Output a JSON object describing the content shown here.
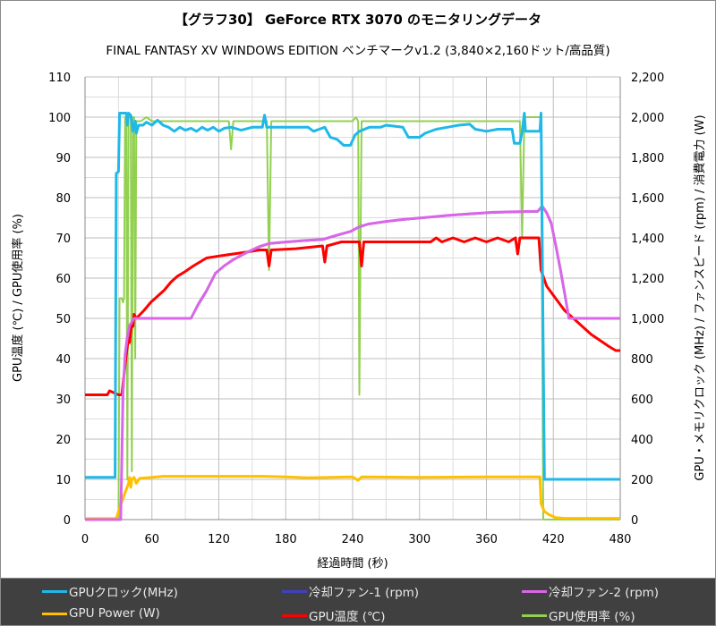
{
  "chart_data": {
    "type": "line",
    "title": "【グラフ30】 GeForce RTX 3070 のモニタリングデータ",
    "subtitle": "FINAL FANTASY XV WINDOWS EDITION ベンチマークv1.2 (3,840×2,160ドット/高品質)",
    "xlabel": "経過時間 (秒)",
    "ylabel_left": "GPU温度 (℃) / GPU使用率 (%)",
    "ylabel_right": "GPU・メモリクロック (MHz) / ファンスピード (rpm) / 消費電力 (W)",
    "xlim": [
      0,
      480
    ],
    "ylim_left": [
      0,
      110
    ],
    "ylim_right": [
      0,
      2200
    ],
    "x_ticks": [
      "0",
      "60",
      "120",
      "180",
      "240",
      "300",
      "360",
      "420",
      "480"
    ],
    "y_ticks_left": [
      "0",
      "10",
      "20",
      "30",
      "40",
      "50",
      "60",
      "70",
      "80",
      "90",
      "100",
      "110"
    ],
    "y_ticks_right": [
      "0",
      "200",
      "400",
      "600",
      "800",
      "1,000",
      "1,200",
      "1,400",
      "1,600",
      "1,800",
      "2,000",
      "2,200"
    ],
    "grid": true,
    "legend_position": "bottom",
    "series": [
      {
        "name": "GPU使用率 (%)",
        "axis": "left",
        "color": "#92d050",
        "points": [
          [
            0,
            0
          ],
          [
            30,
            0
          ],
          [
            31,
            55
          ],
          [
            33,
            55
          ],
          [
            34,
            54
          ],
          [
            35,
            55
          ],
          [
            36,
            100
          ],
          [
            37,
            100
          ],
          [
            38,
            10
          ],
          [
            39,
            100
          ],
          [
            41,
            100
          ],
          [
            42,
            12
          ],
          [
            43,
            100
          ],
          [
            44,
            100
          ],
          [
            45,
            40
          ],
          [
            46,
            99
          ],
          [
            50,
            99
          ],
          [
            55,
            100
          ],
          [
            60,
            99
          ],
          [
            100,
            99
          ],
          [
            129,
            99
          ],
          [
            131,
            92
          ],
          [
            133,
            99
          ],
          [
            163,
            99
          ],
          [
            165,
            62
          ],
          [
            167,
            99
          ],
          [
            240,
            99
          ],
          [
            243,
            100
          ],
          [
            245,
            99
          ],
          [
            246,
            31
          ],
          [
            248,
            99
          ],
          [
            260,
            99
          ],
          [
            300,
            99
          ],
          [
            390,
            99
          ],
          [
            392,
            70
          ],
          [
            394,
            100
          ],
          [
            409,
            100
          ],
          [
            411,
            0
          ],
          [
            480,
            0
          ]
        ]
      },
      {
        "name": "GPU Power (W)",
        "axis": "right",
        "color": "#ffc000",
        "points": [
          [
            0,
            5
          ],
          [
            28,
            5
          ],
          [
            30,
            40
          ],
          [
            33,
            90
          ],
          [
            37,
            150
          ],
          [
            39,
            180
          ],
          [
            40,
            210
          ],
          [
            41,
            160
          ],
          [
            42,
            200
          ],
          [
            44,
            210
          ],
          [
            46,
            180
          ],
          [
            49,
            205
          ],
          [
            60,
            210
          ],
          [
            70,
            215
          ],
          [
            120,
            215
          ],
          [
            160,
            215
          ],
          [
            180,
            212
          ],
          [
            200,
            208
          ],
          [
            240,
            212
          ],
          [
            245,
            195
          ],
          [
            248,
            212
          ],
          [
            300,
            210
          ],
          [
            360,
            212
          ],
          [
            408,
            212
          ],
          [
            409,
            80
          ],
          [
            412,
            40
          ],
          [
            416,
            25
          ],
          [
            422,
            10
          ],
          [
            430,
            6
          ],
          [
            480,
            6
          ]
        ]
      },
      {
        "name": "GPU温度 (℃)",
        "axis": "left",
        "color": "#ff0000",
        "points": [
          [
            0,
            31
          ],
          [
            20,
            31
          ],
          [
            22,
            32
          ],
          [
            30,
            31
          ],
          [
            33,
            31
          ],
          [
            35,
            36
          ],
          [
            37,
            41
          ],
          [
            39,
            45
          ],
          [
            40,
            44
          ],
          [
            42,
            49
          ],
          [
            43,
            48
          ],
          [
            44,
            51
          ],
          [
            46,
            50
          ],
          [
            53,
            52
          ],
          [
            59,
            54
          ],
          [
            65,
            55.5
          ],
          [
            71,
            57
          ],
          [
            77,
            59
          ],
          [
            83,
            60.5
          ],
          [
            89,
            61.5
          ],
          [
            97,
            63
          ],
          [
            103,
            64
          ],
          [
            109,
            65
          ],
          [
            120,
            65.5
          ],
          [
            133,
            66
          ],
          [
            145,
            66.5
          ],
          [
            157,
            67
          ],
          [
            163,
            67
          ],
          [
            165,
            63
          ],
          [
            167,
            67
          ],
          [
            189,
            67.3
          ],
          [
            213,
            68
          ],
          [
            215,
            64
          ],
          [
            217,
            68
          ],
          [
            230,
            69
          ],
          [
            246,
            69
          ],
          [
            248,
            63
          ],
          [
            250,
            69
          ],
          [
            300,
            69
          ],
          [
            310,
            69
          ],
          [
            315,
            70
          ],
          [
            320,
            69
          ],
          [
            330,
            70
          ],
          [
            340,
            69
          ],
          [
            350,
            70
          ],
          [
            360,
            69
          ],
          [
            370,
            70
          ],
          [
            380,
            69
          ],
          [
            386,
            70
          ],
          [
            388,
            66
          ],
          [
            390,
            70
          ],
          [
            407,
            70
          ],
          [
            409,
            62
          ],
          [
            414,
            58
          ],
          [
            422,
            55
          ],
          [
            430,
            52
          ],
          [
            438,
            50
          ],
          [
            446,
            48
          ],
          [
            454,
            46
          ],
          [
            462,
            44.5
          ],
          [
            470,
            43
          ],
          [
            476,
            42
          ],
          [
            480,
            42
          ]
        ]
      },
      {
        "name": "冷却ファン-1 (rpm)",
        "axis": "right",
        "color": "#4040c0",
        "points": [
          [
            0,
            0
          ],
          [
            32,
            0
          ],
          [
            34,
            600
          ],
          [
            36,
            800
          ],
          [
            38,
            900
          ],
          [
            40,
            960
          ],
          [
            44,
            1000
          ],
          [
            95,
            1000
          ],
          [
            102,
            1070
          ],
          [
            109,
            1133
          ],
          [
            117,
            1222
          ],
          [
            125,
            1260
          ],
          [
            133,
            1290
          ],
          [
            145,
            1325
          ],
          [
            157,
            1355
          ],
          [
            165,
            1370
          ],
          [
            181,
            1378
          ],
          [
            197,
            1385
          ],
          [
            213,
            1390
          ],
          [
            225,
            1410
          ],
          [
            238,
            1430
          ],
          [
            246,
            1453
          ],
          [
            254,
            1467
          ],
          [
            270,
            1480
          ],
          [
            286,
            1490
          ],
          [
            306,
            1500
          ],
          [
            326,
            1510
          ],
          [
            346,
            1518
          ],
          [
            366,
            1525
          ],
          [
            386,
            1528
          ],
          [
            406,
            1530
          ],
          [
            410,
            1556
          ],
          [
            414,
            1520
          ],
          [
            418,
            1467
          ],
          [
            422,
            1360
          ],
          [
            426,
            1244
          ],
          [
            430,
            1120
          ],
          [
            434,
            1000
          ],
          [
            480,
            1000
          ]
        ]
      },
      {
        "name": "冷却ファン-2 (rpm)",
        "axis": "right",
        "color": "#d966e8",
        "points": [
          [
            0,
            0
          ],
          [
            32,
            0
          ],
          [
            34,
            620
          ],
          [
            36,
            820
          ],
          [
            38,
            910
          ],
          [
            40,
            965
          ],
          [
            44,
            1000
          ],
          [
            95,
            1000
          ],
          [
            102,
            1075
          ],
          [
            109,
            1138
          ],
          [
            117,
            1225
          ],
          [
            125,
            1262
          ],
          [
            133,
            1292
          ],
          [
            145,
            1328
          ],
          [
            157,
            1358
          ],
          [
            165,
            1372
          ],
          [
            181,
            1380
          ],
          [
            197,
            1387
          ],
          [
            213,
            1392
          ],
          [
            225,
            1412
          ],
          [
            238,
            1432
          ],
          [
            246,
            1455
          ],
          [
            254,
            1469
          ],
          [
            270,
            1482
          ],
          [
            286,
            1492
          ],
          [
            306,
            1502
          ],
          [
            326,
            1512
          ],
          [
            346,
            1520
          ],
          [
            366,
            1527
          ],
          [
            386,
            1530
          ],
          [
            406,
            1532
          ],
          [
            410,
            1558
          ],
          [
            414,
            1525
          ],
          [
            418,
            1475
          ],
          [
            422,
            1370
          ],
          [
            426,
            1255
          ],
          [
            430,
            1130
          ],
          [
            434,
            1000
          ],
          [
            480,
            1000
          ]
        ]
      },
      {
        "name": "GPUクロック (MHz)",
        "axis": "right",
        "color": "#1fb8e8",
        "points": [
          [
            0,
            210
          ],
          [
            27,
            210
          ],
          [
            28,
            1720
          ],
          [
            30,
            1730
          ],
          [
            31,
            2020
          ],
          [
            37,
            2020
          ],
          [
            38,
            1960
          ],
          [
            39,
            2020
          ],
          [
            41,
            2010
          ],
          [
            43,
            1930
          ],
          [
            45,
            1980
          ],
          [
            46,
            1920
          ],
          [
            48,
            1960
          ],
          [
            52,
            1960
          ],
          [
            55,
            1975
          ],
          [
            60,
            1960
          ],
          [
            65,
            1985
          ],
          [
            70,
            1960
          ],
          [
            75,
            1950
          ],
          [
            80,
            1930
          ],
          [
            85,
            1950
          ],
          [
            90,
            1935
          ],
          [
            95,
            1945
          ],
          [
            100,
            1930
          ],
          [
            105,
            1950
          ],
          [
            110,
            1935
          ],
          [
            115,
            1950
          ],
          [
            120,
            1930
          ],
          [
            125,
            1945
          ],
          [
            131,
            1950
          ],
          [
            140,
            1935
          ],
          [
            150,
            1950
          ],
          [
            159,
            1950
          ],
          [
            161,
            2010
          ],
          [
            163,
            1950
          ],
          [
            180,
            1950
          ],
          [
            200,
            1950
          ],
          [
            205,
            1930
          ],
          [
            210,
            1940
          ],
          [
            215,
            1950
          ],
          [
            220,
            1900
          ],
          [
            226,
            1890
          ],
          [
            232,
            1860
          ],
          [
            238,
            1860
          ],
          [
            242,
            1910
          ],
          [
            246,
            1930
          ],
          [
            255,
            1950
          ],
          [
            265,
            1950
          ],
          [
            270,
            1960
          ],
          [
            285,
            1950
          ],
          [
            290,
            1900
          ],
          [
            300,
            1900
          ],
          [
            305,
            1920
          ],
          [
            315,
            1940
          ],
          [
            325,
            1950
          ],
          [
            335,
            1960
          ],
          [
            345,
            1965
          ],
          [
            350,
            1940
          ],
          [
            360,
            1930
          ],
          [
            370,
            1940
          ],
          [
            383,
            1940
          ],
          [
            385,
            1870
          ],
          [
            390,
            1870
          ],
          [
            392,
            1930
          ],
          [
            394,
            2020
          ],
          [
            395,
            1930
          ],
          [
            408,
            1930
          ],
          [
            409,
            2020
          ],
          [
            412,
            200
          ],
          [
            480,
            200
          ]
        ]
      }
    ]
  },
  "legend": {
    "items": [
      {
        "label": "GPUクロック(MHz)",
        "color": "#1fb8e8"
      },
      {
        "label": "冷却ファン-1 (rpm)",
        "color": "#4040c0"
      },
      {
        "label": "冷却ファン-2 (rpm)",
        "color": "#d966e8"
      },
      {
        "label": "GPU Power (W)",
        "color": "#ffc000"
      },
      {
        "label": "GPU温度 (℃)",
        "color": "#ff0000"
      },
      {
        "label": "GPU使用率 (%)",
        "color": "#92d050"
      }
    ]
  }
}
